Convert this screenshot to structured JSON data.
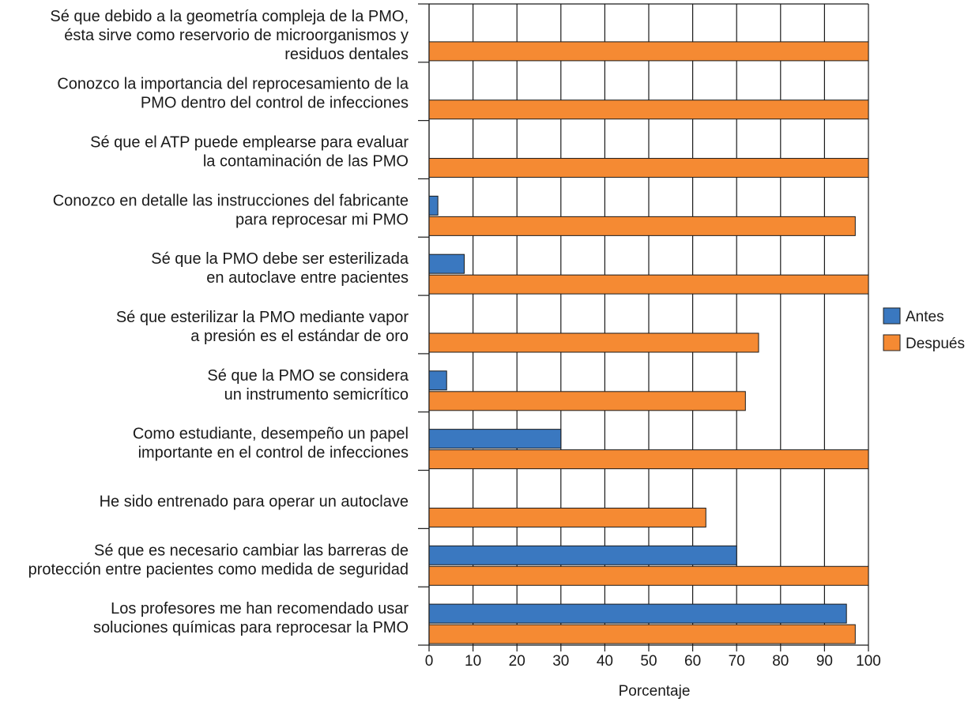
{
  "chart_data": {
    "type": "bar",
    "orientation": "horizontal",
    "title": "",
    "xlabel": "Porcentaje",
    "ylabel": "",
    "xlim": [
      0,
      100
    ],
    "xticks": [
      0,
      10,
      20,
      30,
      40,
      50,
      60,
      70,
      80,
      90,
      100
    ],
    "grid": "vertical",
    "legend_position": "right",
    "categories": [
      [
        "Sé que debido a la geometría compleja de la PMO,",
        "ésta sirve como reservorio de microorganismos y",
        "residuos dentales"
      ],
      [
        "Conozco la importancia del reprocesamiento de la",
        "PMO dentro del control de infecciones"
      ],
      [
        "Sé que el ATP puede emplearse para evaluar",
        "la contaminación de las PMO"
      ],
      [
        "Conozco en detalle las instrucciones del fabricante",
        "para reprocesar mi PMO"
      ],
      [
        "Sé que la PMO debe ser esterilizada",
        "en autoclave entre pacientes"
      ],
      [
        "Sé que esterilizar la PMO mediante vapor",
        "a presión es el estándar de oro"
      ],
      [
        "Sé que la PMO se considera",
        "un instrumento semicrítico"
      ],
      [
        "Como estudiante, desempeño un papel",
        "importante en el control de infecciones"
      ],
      [
        "He sido entrenado para operar un autoclave"
      ],
      [
        "Sé que es necesario cambiar las barreras de",
        "protección entre pacientes como medida de seguridad"
      ],
      [
        "Los profesores me han recomendado usar",
        "soluciones químicas para reprocesar la PMO"
      ]
    ],
    "series": [
      {
        "name": "Antes",
        "color": "#3a78c0",
        "values": [
          0,
          0,
          0,
          2,
          8,
          0,
          4,
          30,
          0,
          70,
          95
        ]
      },
      {
        "name": "Después",
        "color": "#f58a33",
        "values": [
          100,
          100,
          100,
          97,
          100,
          75,
          72,
          100,
          63,
          100,
          97
        ]
      }
    ]
  }
}
